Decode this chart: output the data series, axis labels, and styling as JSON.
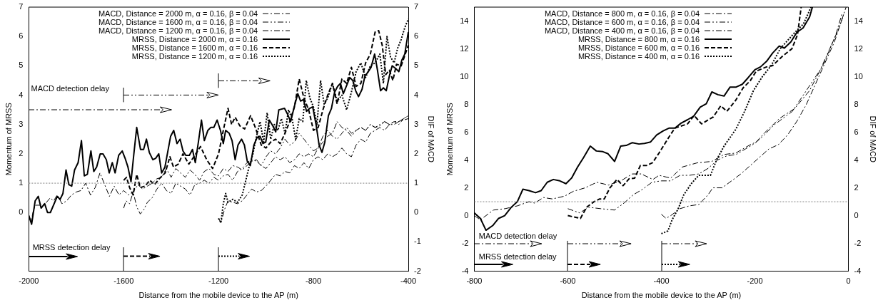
{
  "chart_data": [
    {
      "type": "line",
      "xlabel": "Distance from the mobile device to the AP (m)",
      "ylabel": "Momentum of MRSS",
      "y2label": "DIF of MACD",
      "xlim": [
        -2000,
        -400
      ],
      "xticks": [
        -2000,
        -1600,
        -1200,
        -800,
        -400
      ],
      "ylim": [
        -2,
        7
      ],
      "yticks": [
        0,
        1,
        2,
        3,
        4,
        5,
        6,
        7
      ],
      "y2lim": [
        -2,
        7
      ],
      "y2ticks": [
        -2,
        -1,
        0,
        1,
        2,
        3,
        4,
        5,
        6,
        7
      ],
      "legend": "top",
      "ref_lines": [
        {
          "axis": "y",
          "value": 1,
          "color": "#808080",
          "line_style": "dotted"
        }
      ],
      "annotations": [
        "MACD detection delay",
        "MRSS detection delay"
      ],
      "series": [
        {
          "name": "MACD, Distance = 2000 m, α = 0.16, β = 0.04",
          "color": "#000000",
          "axis": "y2",
          "line_style": "dashdot",
          "x": [
            -2000,
            -1990,
            -1980,
            -1970,
            -1950,
            -1930,
            -1910,
            -1895,
            -1880,
            -1860,
            -1840,
            -1820,
            -1800,
            -1780,
            -1760,
            -1740,
            -1720,
            -1700,
            -1680,
            -1660,
            -1640,
            -1620,
            -1600,
            -1580,
            -1560,
            -1540,
            -1520,
            -1500,
            -1480,
            -1460,
            -1440,
            -1420,
            -1400,
            -1380,
            -1360,
            -1340,
            -1320,
            -1300,
            -1280,
            -1260,
            -1240,
            -1220,
            -1200,
            -1180,
            -1160,
            -1140,
            -1120,
            -1100,
            -1080,
            -1060,
            -1040,
            -1020,
            -1000,
            -980,
            -960,
            -940,
            -920,
            -900,
            -880,
            -860,
            -840,
            -820,
            -800,
            -780,
            -760,
            -740,
            -720,
            -700,
            -680,
            -660,
            -640,
            -620,
            -600,
            -580,
            -560,
            -540,
            -520,
            -500,
            -480,
            -460,
            -440,
            -420,
            -400
          ],
          "values": [
            -0.1,
            -0.3,
            0.1,
            0.25,
            0.25,
            0.3,
            0.5,
            0.4,
            0.6,
            0.3,
            0.4,
            0.6,
            0.7,
            0.75,
            1.0,
            0.6,
            0.85,
            1.35,
            0.95,
            0.55,
            0.9,
            0.6,
            0.75,
            0.6,
            0.7,
            0.95,
            0.8,
            0.9,
            1.0,
            1.15,
            1.2,
            1.5,
            1.2,
            1.5,
            1.35,
            1.2,
            1.45,
            1.3,
            1.1,
            1.4,
            1.5,
            1.3,
            1.25,
            1.5,
            1.4,
            1.6,
            1.55,
            1.45,
            1.6,
            1.75,
            1.8,
            1.6,
            1.5,
            1.7,
            1.9,
            1.8,
            1.9,
            1.7,
            1.8,
            2.0,
            1.9,
            2.0,
            1.9,
            2.2,
            2.4,
            2.6,
            2.7,
            3.1,
            2.9,
            2.8,
            2.6,
            2.8,
            2.9,
            2.8,
            3.0,
            2.9,
            3.0,
            3.1,
            3.0,
            3.1,
            3.0,
            3.2,
            3.3
          ]
        },
        {
          "name": "MACD, Distance = 1600 m, α = 0.16, β = 0.04",
          "color": "#000000",
          "axis": "y2",
          "line_style": "dashdotdot",
          "x": [
            -1600,
            -1590,
            -1575,
            -1560,
            -1545,
            -1530,
            -1515,
            -1500,
            -1480,
            -1460,
            -1440,
            -1420,
            -1400,
            -1380,
            -1360,
            -1340,
            -1320,
            -1300,
            -1280,
            -1260,
            -1240,
            -1220,
            -1200,
            -1180,
            -1160,
            -1140,
            -1120,
            -1100,
            -1080,
            -1060,
            -1040,
            -1020,
            -1000,
            -980,
            -960,
            -940,
            -920,
            -900,
            -880,
            -860,
            -840,
            -820,
            -800,
            -780,
            -760,
            -740,
            -720,
            -700,
            -680,
            -660,
            -640,
            -620,
            -600,
            -580,
            -560,
            -540,
            -520,
            -500,
            -480,
            -460,
            -440,
            -420,
            -400
          ],
          "values": [
            0.15,
            0.4,
            0.3,
            0.7,
            0.2,
            -0.05,
            0.1,
            0.35,
            0.5,
            0.8,
            1.0,
            0.75,
            0.65,
            1.0,
            0.9,
            0.8,
            0.6,
            0.95,
            1.0,
            1.1,
            1.0,
            1.2,
            1.1,
            1.25,
            1.3,
            1.1,
            1.4,
            1.5,
            1.7,
            1.8,
            1.75,
            1.6,
            1.9,
            2.1,
            2.0,
            2.2,
            2.5,
            2.3,
            2.4,
            2.7,
            2.5,
            2.3,
            2.1,
            2.2,
            2.6,
            2.8,
            2.6,
            2.5,
            2.7,
            2.9,
            2.7,
            2.8,
            2.9,
            2.8,
            3.0,
            2.9,
            2.95,
            3.1,
            3.0,
            3.1,
            3.1,
            3.2,
            3.3
          ]
        },
        {
          "name": "MACD, Distance = 1200 m, α = 0.16, β = 0.04",
          "color": "#000000",
          "axis": "y2",
          "line_style": "dashdot",
          "x": [
            -1200,
            -1190,
            -1175,
            -1160,
            -1140,
            -1120,
            -1100,
            -1080,
            -1060,
            -1040,
            -1020,
            -1000,
            -980,
            -960,
            -940,
            -920,
            -900,
            -880,
            -860,
            -840,
            -820,
            -800,
            -780,
            -760,
            -740,
            -720,
            -700,
            -680,
            -660,
            -640,
            -620,
            -600,
            -580,
            -560,
            -540,
            -520,
            -500,
            -480,
            -460,
            -440,
            -420,
            -400
          ],
          "values": [
            -0.2,
            -0.35,
            0.1,
            0.4,
            0.35,
            0.3,
            0.4,
            0.6,
            0.8,
            0.7,
            0.75,
            0.9,
            1.1,
            1.3,
            1.25,
            1.4,
            1.35,
            1.6,
            1.5,
            1.7,
            1.5,
            1.8,
            1.9,
            1.8,
            2.0,
            1.9,
            2.0,
            2.2,
            2.0,
            1.9,
            2.3,
            2.5,
            2.4,
            2.7,
            2.8,
            2.9,
            2.8,
            3.0,
            3.0,
            3.1,
            3.15,
            3.2
          ]
        },
        {
          "name": "MRSS, Distance = 2000 m, α = 0.16",
          "color": "#000000",
          "axis": "y",
          "line_style": "solid",
          "x": [
            -2000,
            -1988,
            -1973,
            -1960,
            -1948,
            -1933,
            -1921,
            -1909,
            -1880,
            -1868,
            -1856,
            -1843,
            -1831,
            -1819,
            -1807,
            -1792,
            -1778,
            -1766,
            -1753,
            -1738,
            -1726,
            -1714,
            -1699,
            -1687,
            -1673,
            -1661,
            -1648,
            -1636,
            -1621,
            -1606,
            -1594,
            -1582,
            -1569,
            -1557,
            -1545,
            -1529,
            -1516,
            -1504,
            -1492,
            -1477,
            -1465,
            -1452,
            -1440,
            -1426,
            -1402,
            -1389,
            -1375,
            -1362,
            -1350,
            -1338,
            -1323,
            -1310,
            -1298,
            -1285,
            -1272,
            -1260,
            -1245,
            -1233,
            -1220,
            -1206,
            -1192,
            -1180,
            -1170,
            -1155,
            -1143,
            -1130,
            -1118,
            -1103,
            -1091,
            -1079,
            -1066,
            -1051,
            -1038,
            -1025,
            -1013,
            -1001,
            -986,
            -971,
            -959,
            -946,
            -922,
            -909,
            -896,
            -881,
            -866,
            -854,
            -842,
            -829,
            -816,
            -803,
            -789,
            -776,
            -764,
            -752,
            -737,
            -724,
            -711,
            -698,
            -686,
            -674,
            -659,
            -647,
            -634,
            -622,
            -610,
            -595,
            -583,
            -569,
            -557,
            -542,
            -530,
            -517,
            -505,
            -493,
            -480,
            -468,
            -452,
            -440,
            -427,
            -415,
            -400
          ],
          "values": [
            -0.1,
            -0.4,
            0.4,
            0.55,
            0.15,
            0.3,
            0.0,
            0.0,
            0.55,
            0.45,
            0.65,
            1.45,
            0.95,
            0.9,
            1.45,
            1.7,
            2.45,
            1.25,
            1.3,
            2.1,
            1.4,
            1.55,
            2.0,
            2.0,
            1.8,
            1.35,
            1.7,
            1.35,
            1.95,
            2.1,
            1.85,
            1.55,
            1.05,
            2.0,
            2.9,
            2.15,
            2.15,
            2.5,
            2.05,
            1.8,
            1.85,
            2.0,
            1.35,
            1.55,
            2.6,
            2.8,
            2.35,
            2.5,
            2.1,
            1.95,
            1.95,
            2.15,
            1.7,
            2.4,
            3.15,
            2.45,
            2.8,
            2.9,
            2.9,
            3.15,
            2.8,
            2.35,
            2.8,
            2.7,
            2.45,
            1.8,
            2.3,
            2.5,
            2.3,
            1.75,
            1.6,
            2.3,
            2.55,
            2.6,
            2.35,
            2.4,
            3.15,
            2.95,
            2.75,
            3.5,
            3.55,
            3.35,
            3.1,
            3.6,
            4.05,
            3.8,
            3.85,
            3.45,
            3.55,
            3.6,
            3.0,
            2.3,
            2.05,
            2.4,
            3.3,
            3.55,
            4.1,
            4.3,
            4.4,
            4.05,
            4.35,
            4.6,
            4.5,
            4.15,
            3.95,
            4.2,
            4.65,
            4.8,
            4.95,
            5.4,
            4.85,
            4.15,
            4.25,
            4.15,
            4.65,
            5.0,
            4.9,
            4.8,
            5.2,
            5.4,
            6.15
          ]
        },
        {
          "name": "MRSS, Distance = 1600 m, α = 0.16",
          "color": "#000000",
          "axis": "y",
          "line_style": "dashed",
          "x": [
            -1600,
            -1588,
            -1575,
            -1560,
            -1545,
            -1530,
            -1510,
            -1490,
            -1470,
            -1450,
            -1425,
            -1405,
            -1390,
            -1370,
            -1350,
            -1325,
            -1300,
            -1276,
            -1250,
            -1225,
            -1200,
            -1180,
            -1160,
            -1145,
            -1130,
            -1110,
            -1090,
            -1065,
            -1045,
            -1020,
            -1000,
            -980,
            -960,
            -940,
            -920,
            -900,
            -880,
            -860,
            -840,
            -820,
            -800,
            -780,
            -760,
            -740,
            -720,
            -700,
            -680,
            -660,
            -640,
            -620,
            -600,
            -580,
            -560,
            -540,
            -525,
            -510,
            -495,
            -480,
            -465,
            -450,
            -430,
            -415,
            -400
          ],
          "values": [
            1.1,
            1.2,
            0.85,
            0.6,
            1.3,
            0.85,
            0.9,
            1.1,
            0.95,
            1.15,
            1.35,
            1.9,
            1.55,
            1.65,
            2.0,
            1.65,
            1.95,
            2.25,
            1.8,
            1.5,
            2.0,
            2.8,
            3.55,
            3.0,
            3.25,
            2.95,
            2.85,
            3.3,
            2.9,
            2.3,
            2.2,
            2.4,
            2.5,
            2.35,
            2.7,
            3.1,
            3.6,
            4.55,
            3.9,
            3.5,
            2.8,
            2.9,
            3.5,
            4.0,
            4.4,
            3.7,
            4.55,
            4.4,
            4.95,
            4.3,
            4.4,
            5.1,
            5.4,
            6.15,
            6.2,
            5.7,
            4.7,
            4.85,
            4.5,
            5.05,
            5.0,
            5.35,
            5.7
          ]
        },
        {
          "name": "MRSS, Distance = 1200 m, α = 0.16",
          "color": "#000000",
          "axis": "y",
          "line_style": "dotted",
          "x": [
            -1200,
            -1190,
            -1180,
            -1170,
            -1160,
            -1140,
            -1120,
            -1100,
            -1085,
            -1070,
            -1055,
            -1040,
            -1025,
            -1010,
            -995,
            -980,
            -965,
            -950,
            -935,
            -920,
            -905,
            -890,
            -875,
            -860,
            -845,
            -830,
            -815,
            -800,
            -785,
            -770,
            -755,
            -740,
            -720,
            -700,
            -680,
            -660,
            -640,
            -620,
            -600,
            -580,
            -560,
            -540,
            -520,
            -505,
            -490,
            -475,
            -460,
            -445,
            -430,
            -415,
            -400
          ],
          "values": [
            -0.2,
            -0.35,
            0.3,
            0.65,
            0.35,
            0.45,
            0.35,
            0.6,
            1.1,
            1.6,
            2.0,
            2.6,
            3.1,
            2.4,
            3.4,
            2.5,
            3.0,
            2.8,
            3.2,
            2.7,
            3.5,
            3.2,
            2.5,
            3.2,
            3.1,
            4.5,
            3.9,
            3.6,
            3.0,
            4.5,
            3.7,
            3.9,
            4.4,
            3.8,
            4.0,
            3.5,
            4.1,
            4.8,
            5.1,
            4.6,
            5.0,
            5.1,
            5.4,
            4.4,
            6.0,
            5.3,
            5.1,
            5.6,
            5.9,
            6.3,
            6.6
          ]
        }
      ]
    },
    {
      "type": "line",
      "xlabel": "Distance from the mobile device to the AP (m)",
      "ylabel": "Momentum of MRSS",
      "y2label": "DIF of MACD",
      "xlim": [
        -800,
        0
      ],
      "xticks": [
        -800,
        -600,
        -400,
        -200,
        0
      ],
      "ylim": [
        -4,
        15
      ],
      "yticks": [
        -4,
        -2,
        0,
        2,
        4,
        6,
        8,
        10,
        12,
        14
      ],
      "y2lim": [
        -4,
        15
      ],
      "y2ticks": [
        -4,
        -2,
        0,
        2,
        4,
        6,
        8,
        10,
        12,
        14
      ],
      "legend": "top",
      "ref_lines": [
        {
          "axis": "y",
          "value": 1,
          "color": "#808080",
          "line_style": "dotted"
        }
      ],
      "annotations": [
        "MACD detection delay",
        "MRSS detection delay"
      ],
      "series": [
        {
          "name": "MACD, Distance = 800 m, α = 0.16, β = 0.04",
          "color": "#000000",
          "axis": "y2",
          "line_style": "dashdot",
          "x": [
            -800,
            -787,
            -759,
            -734,
            -708,
            -683,
            -671,
            -652,
            -633,
            -607,
            -588,
            -563,
            -538,
            -513,
            -487,
            -462,
            -443,
            -418,
            -405,
            -380,
            -355,
            -323,
            -292,
            -266,
            -241,
            -210,
            -197,
            -178,
            -147,
            -115,
            -83,
            -52,
            -27,
            -14
          ],
          "values": [
            0.0,
            -0.3,
            0.4,
            0.5,
            0.7,
            1.0,
            0.9,
            1.3,
            1.2,
            1.4,
            1.75,
            2.0,
            2.4,
            2.2,
            2.5,
            3.0,
            3.0,
            2.6,
            2.9,
            2.7,
            3.5,
            3.8,
            3.9,
            4.4,
            4.5,
            5.1,
            5.3,
            6.0,
            7.0,
            7.7,
            9.0,
            11.0,
            13.0,
            14.5
          ]
        },
        {
          "name": "MACD, Distance = 600 m, α = 0.16, β = 0.04",
          "color": "#000000",
          "axis": "y2",
          "line_style": "dashdotdot",
          "x": [
            -600,
            -575,
            -555,
            -530,
            -500,
            -480,
            -460,
            -440,
            -420,
            -400,
            -380,
            -360,
            -340,
            -320,
            -300,
            -280,
            -260,
            -240,
            -220,
            -200,
            -180,
            -160,
            -140,
            -120,
            -100,
            -80,
            -60,
            -40,
            -20,
            -10
          ],
          "values": [
            0.5,
            0.2,
            0.6,
            0.5,
            0.4,
            0.9,
            1.5,
            1.9,
            2.4,
            2.5,
            2.5,
            2.9,
            2.9,
            3.0,
            3.4,
            4.0,
            4.3,
            4.4,
            4.8,
            5.2,
            5.8,
            6.5,
            7.0,
            7.5,
            8.5,
            9.5,
            10.5,
            12.0,
            13.5,
            14.5
          ]
        },
        {
          "name": "MACD, Distance = 400 m, α = 0.16, β = 0.04",
          "color": "#000000",
          "axis": "y2",
          "line_style": "dashdot",
          "x": [
            -400,
            -390,
            -380,
            -360,
            -340,
            -320,
            -300,
            -290,
            -270,
            -250,
            -230,
            -210,
            -190,
            -170,
            -150,
            -130,
            -110,
            -90,
            -70,
            -50,
            -30,
            -15,
            -5
          ],
          "values": [
            0.1,
            -0.2,
            0.0,
            0.5,
            0.7,
            0.8,
            1.5,
            2.0,
            2.0,
            2.5,
            3.0,
            3.6,
            4.2,
            4.8,
            5.1,
            5.8,
            6.8,
            8.0,
            9.5,
            11.0,
            12.5,
            14.0,
            15.0
          ]
        },
        {
          "name": "MRSS, Distance = 800 m, α = 0.16",
          "color": "#000000",
          "axis": "y",
          "line_style": "solid",
          "x": [
            -800,
            -787,
            -775,
            -760,
            -748,
            -735,
            -721,
            -708,
            -696,
            -683,
            -669,
            -657,
            -644,
            -631,
            -617,
            -604,
            -592,
            -579,
            -566,
            -552,
            -539,
            -525,
            -514,
            -500,
            -487,
            -475,
            -462,
            -448,
            -436,
            -423,
            -410,
            -396,
            -383,
            -371,
            -358,
            -344,
            -331,
            -317,
            -304,
            -292,
            -279,
            -266,
            -253,
            -240,
            -227,
            -215,
            -200,
            -188,
            -175,
            -162,
            -148,
            -137,
            -123,
            -110,
            -97,
            -83,
            -77
          ],
          "values": [
            0.2,
            -0.2,
            -1.05,
            -0.7,
            -0.2,
            0.0,
            0.6,
            1.0,
            1.9,
            1.8,
            1.65,
            1.8,
            2.4,
            2.6,
            2.5,
            2.3,
            2.7,
            3.5,
            4.2,
            5.0,
            4.65,
            4.6,
            4.45,
            3.9,
            5.0,
            5.05,
            5.25,
            5.15,
            5.2,
            5.3,
            5.8,
            6.1,
            6.3,
            6.3,
            6.65,
            6.9,
            7.15,
            7.8,
            8.05,
            8.9,
            8.7,
            8.6,
            9.25,
            9.25,
            9.45,
            9.9,
            10.5,
            10.7,
            11.1,
            11.7,
            12.2,
            12.05,
            12.5,
            13.2,
            13.5,
            14.3,
            15.0
          ]
        },
        {
          "name": "MRSS, Distance = 600 m, α = 0.16",
          "color": "#000000",
          "axis": "y",
          "line_style": "dashed",
          "x": [
            -600,
            -573,
            -560,
            -544,
            -532,
            -522,
            -510,
            -495,
            -482,
            -469,
            -457,
            -445,
            -432,
            -419,
            -405,
            -381,
            -371,
            -344,
            -330,
            -314,
            -289,
            -273,
            -260,
            -241,
            -225,
            -210,
            -197,
            -175,
            -162,
            -140,
            -121,
            -109,
            -101
          ],
          "values": [
            0.0,
            -0.2,
            0.6,
            1.0,
            1.2,
            1.2,
            2.0,
            2.6,
            2.15,
            2.65,
            2.7,
            3.6,
            3.6,
            3.8,
            4.5,
            5.8,
            6.3,
            6.6,
            7.2,
            6.6,
            7.1,
            7.9,
            7.5,
            8.3,
            9.2,
            9.7,
            10.4,
            10.7,
            10.8,
            11.5,
            12.0,
            13.0,
            15.0
          ]
        },
        {
          "name": "MRSS, Distance = 400 m, α = 0.16",
          "color": "#000000",
          "axis": "y",
          "line_style": "dotted",
          "x": [
            -400,
            -386,
            -377,
            -364,
            -352,
            -336,
            -320,
            -295,
            -282,
            -266,
            -241,
            -222,
            -203,
            -184,
            -165,
            -146,
            -114,
            -96,
            -80
          ],
          "values": [
            -1.3,
            -1.1,
            -0.3,
            0.5,
            1.5,
            2.3,
            2.9,
            2.9,
            4.0,
            5.0,
            6.2,
            7.5,
            9.0,
            10.0,
            10.8,
            12.0,
            13.2,
            13.8,
            15.0
          ]
        }
      ]
    }
  ]
}
